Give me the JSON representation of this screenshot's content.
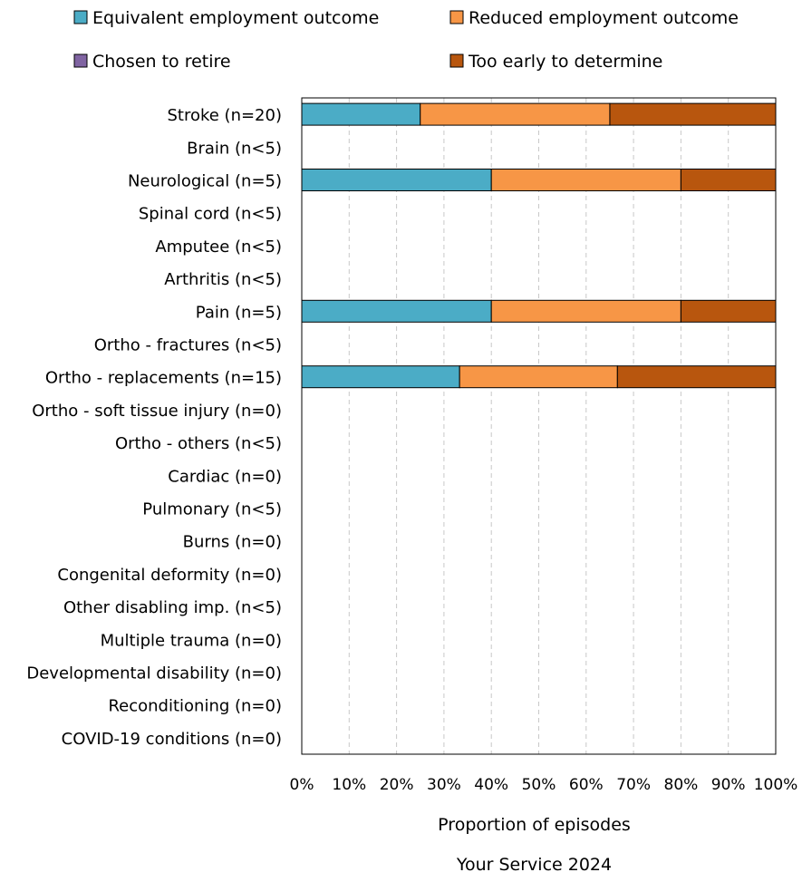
{
  "chart_data": {
    "type": "bar",
    "orientation": "horizontal",
    "stacked": true,
    "categories": [
      "Stroke (n=20)",
      "Brain (n<5)",
      "Neurological (n=5)",
      "Spinal cord (n<5)",
      "Amputee (n<5)",
      "Arthritis (n<5)",
      "Pain (n=5)",
      "Ortho - fractures (n<5)",
      "Ortho - replacements (n=15)",
      "Ortho - soft tissue injury (n=0)",
      "Ortho - others (n<5)",
      "Cardiac (n=0)",
      "Pulmonary (n<5)",
      "Burns (n=0)",
      "Congenital deformity (n=0)",
      "Other disabling imp. (n<5)",
      "Multiple trauma (n=0)",
      "Developmental disability (n=0)",
      "Reconditioning (n=0)",
      "COVID-19 conditions (n=0)"
    ],
    "series": [
      {
        "name": "Equivalent employment outcome",
        "color": "#4BACC6",
        "values": [
          25,
          0,
          40,
          0,
          0,
          0,
          40,
          0,
          33.3,
          0,
          0,
          0,
          0,
          0,
          0,
          0,
          0,
          0,
          0,
          0
        ]
      },
      {
        "name": "Reduced employment outcome",
        "color": "#F79646",
        "values": [
          40,
          0,
          40,
          0,
          0,
          0,
          40,
          0,
          33.3,
          0,
          0,
          0,
          0,
          0,
          0,
          0,
          0,
          0,
          0,
          0
        ]
      },
      {
        "name": "Chosen to retire",
        "color": "#8064A2",
        "values": [
          0,
          0,
          0,
          0,
          0,
          0,
          0,
          0,
          0,
          0,
          0,
          0,
          0,
          0,
          0,
          0,
          0,
          0,
          0,
          0
        ]
      },
      {
        "name": "Too early to determine",
        "color": "#B8560E",
        "values": [
          35,
          0,
          20,
          0,
          0,
          0,
          20,
          0,
          33.4,
          0,
          0,
          0,
          0,
          0,
          0,
          0,
          0,
          0,
          0,
          0
        ]
      }
    ],
    "xlim": [
      0,
      100
    ],
    "xticks": [
      "0%",
      "10%",
      "20%",
      "30%",
      "40%",
      "50%",
      "60%",
      "70%",
      "80%",
      "90%",
      "100%"
    ],
    "xlabel": "Proportion of episodes",
    "title": "Your Service 2024",
    "grid": "vertical dashed",
    "legend": "top"
  }
}
